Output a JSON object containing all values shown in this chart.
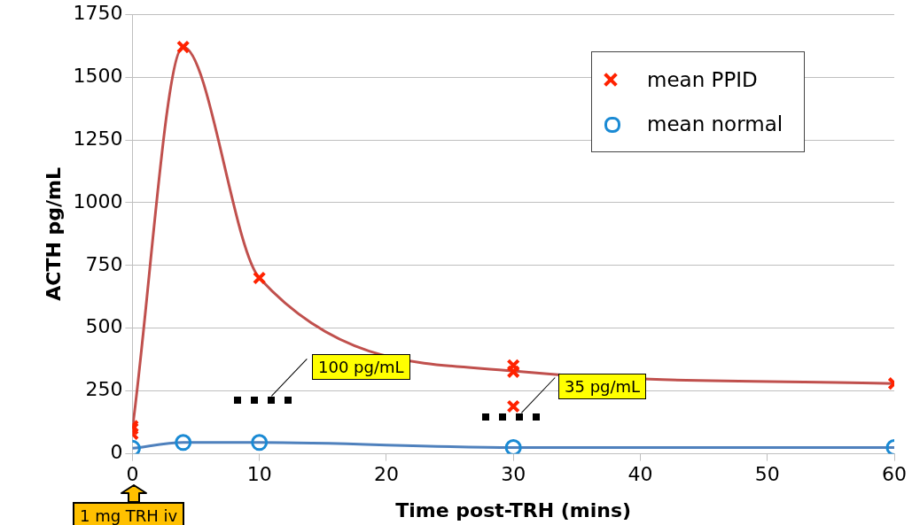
{
  "chart_data": {
    "type": "line",
    "xlabel": "Time post-TRH (mins)",
    "ylabel": "ACTH pg/mL",
    "xlim": [
      0,
      60
    ],
    "xticks": [
      0,
      10,
      20,
      30,
      40,
      50,
      60
    ],
    "ylim": [
      0,
      1750
    ],
    "yticks": [
      0,
      250,
      500,
      750,
      1000,
      1250,
      1500,
      1750
    ],
    "grid": "y",
    "legend": "top right",
    "series": [
      {
        "color": "#c0504d",
        "marker": "none",
        "x": [
          0,
          4,
          10,
          30,
          60
        ],
        "values": [
          100,
          1620,
          700,
          330,
          280
        ]
      },
      {
        "color": "#4f81bd",
        "marker": "none",
        "x": [
          0,
          4,
          10,
          30,
          60
        ],
        "values": [
          22,
          45,
          45,
          25,
          25
        ]
      },
      {
        "name": "mean PPID",
        "type": "scatter",
        "color": "#ff2200",
        "marker": "cross",
        "x": [
          0,
          0,
          0,
          4,
          10,
          30,
          30,
          30,
          60
        ],
        "values": [
          80,
          100,
          110,
          1620,
          700,
          352,
          327,
          189,
          280
        ]
      },
      {
        "name": "mean normal",
        "type": "scatter",
        "color": "#1a8ad4",
        "marker": "circle",
        "x": [
          0,
          4,
          10,
          30,
          60
        ],
        "values": [
          22,
          45,
          45,
          25,
          25
        ]
      }
    ],
    "annotations": [
      "100 pg/mL",
      "35 pg/mL",
      "1 mg TRH iv"
    ]
  }
}
